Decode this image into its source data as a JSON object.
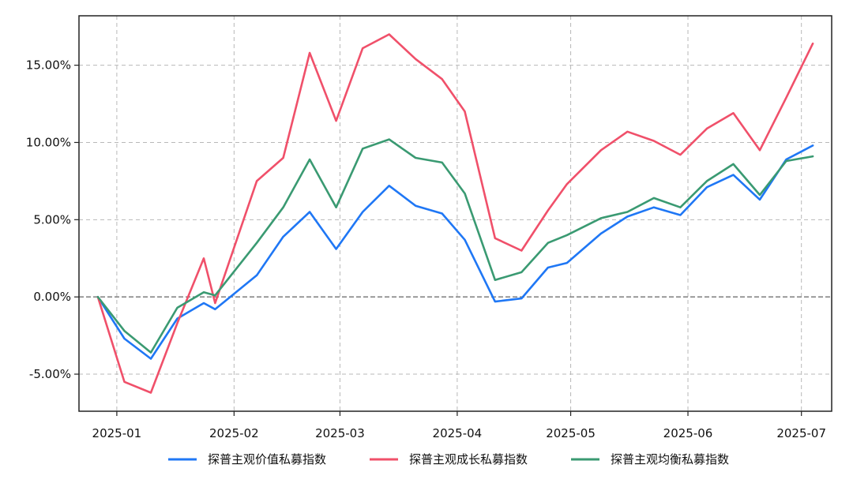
{
  "chart_data": {
    "type": "line",
    "title": "",
    "xlabel": "",
    "ylabel": "",
    "ylim": [
      -0.074,
      0.182
    ],
    "yticks": [
      -0.05,
      0.0,
      0.05,
      0.1,
      0.15
    ],
    "ytick_labels": [
      "-5.00%",
      "0.00%",
      "5.00%",
      "10.00%",
      "15.00%"
    ],
    "xlim": [
      "2024-12-22",
      "2025-07-09"
    ],
    "xticks": [
      "2025-01-01",
      "2025-02-01",
      "2025-03-01",
      "2025-04-01",
      "2025-05-01",
      "2025-06-01",
      "2025-07-01"
    ],
    "xtick_labels": [
      "2025-01",
      "2025-02",
      "2025-03",
      "2025-04",
      "2025-05",
      "2025-06",
      "2025-07"
    ],
    "grid": true,
    "zero_line": true,
    "legend": "bottom",
    "x": [
      "2024-12-27",
      "2025-01-03",
      "2025-01-10",
      "2025-01-17",
      "2025-01-24",
      "2025-01-27",
      "2025-02-07",
      "2025-02-14",
      "2025-02-21",
      "2025-02-28",
      "2025-03-07",
      "2025-03-14",
      "2025-03-21",
      "2025-03-28",
      "2025-04-03",
      "2025-04-11",
      "2025-04-18",
      "2025-04-25",
      "2025-04-30",
      "2025-05-09",
      "2025-05-16",
      "2025-05-23",
      "2025-05-30",
      "2025-06-06",
      "2025-06-13",
      "2025-06-20",
      "2025-06-27",
      "2025-07-04"
    ],
    "series": [
      {
        "name": "探普主观价值私募指数",
        "color": "#1f77f5",
        "values": [
          0.0,
          -0.027,
          -0.04,
          -0.014,
          -0.004,
          -0.008,
          0.014,
          0.039,
          0.055,
          0.031,
          0.055,
          0.072,
          0.059,
          0.054,
          0.037,
          -0.003,
          -0.001,
          0.019,
          0.022,
          0.041,
          0.052,
          0.058,
          0.053,
          0.071,
          0.079,
          0.063,
          0.089,
          0.098
        ]
      },
      {
        "name": "探普主观成长私募指数",
        "color": "#f0506a",
        "values": [
          0.0,
          -0.055,
          -0.062,
          -0.017,
          0.025,
          -0.004,
          0.075,
          0.09,
          0.158,
          0.114,
          0.161,
          0.17,
          0.154,
          0.141,
          0.12,
          0.038,
          0.03,
          0.056,
          0.073,
          0.095,
          0.107,
          0.101,
          0.092,
          0.109,
          0.119,
          0.095,
          0.129,
          0.164
        ]
      },
      {
        "name": "探普主观均衡私募指数",
        "color": "#3a9a72",
        "values": [
          0.0,
          -0.022,
          -0.036,
          -0.007,
          0.003,
          0.001,
          0.035,
          0.058,
          0.089,
          0.058,
          0.096,
          0.102,
          0.09,
          0.087,
          0.067,
          0.011,
          0.016,
          0.035,
          0.04,
          0.051,
          0.055,
          0.064,
          0.058,
          0.075,
          0.086,
          0.066,
          0.088,
          0.091
        ]
      }
    ]
  }
}
